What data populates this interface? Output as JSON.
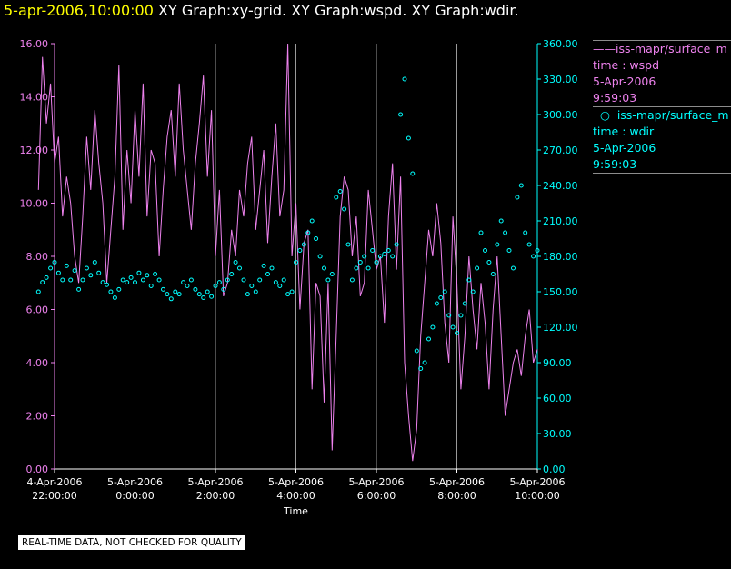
{
  "header": {
    "timestamp": "5-apr-2006,10:00:00",
    "graph_titles": "XY Graph:xy-grid.  XY Graph:wspd.  XY Graph:wdir."
  },
  "legend": {
    "entries": [
      {
        "label": "iss-mapr/surface_m",
        "line1": "time : wspd",
        "line2": "5-Apr-2006",
        "line3": "9:59:03",
        "color": "#ee82ee",
        "marker": "line"
      },
      {
        "label": "iss-mapr/surface_m",
        "line1": "time : wdir",
        "line2": "5-Apr-2006",
        "line3": "9:59:03",
        "color": "#00ffff",
        "marker": "circle"
      }
    ]
  },
  "footer": {
    "quality_note": "REAL-TIME DATA, NOT CHECKED FOR QUALITY"
  },
  "colors": {
    "background": "#000000",
    "wspd": "#ee82ee",
    "wdir": "#00ffff",
    "grid": "#ffffff",
    "timestamp": "#ffff00"
  },
  "chart_data": {
    "type": "line",
    "xlabel": "Time",
    "xlim_hours": [
      -2.4,
      10.1
    ],
    "x_ticks": [
      {
        "h": -2,
        "line1": "4-Apr-2006",
        "line2": "22:00:00"
      },
      {
        "h": 0,
        "line1": "5-Apr-2006",
        "line2": "0:00:00"
      },
      {
        "h": 2,
        "line1": "5-Apr-2006",
        "line2": "2:00:00"
      },
      {
        "h": 4,
        "line1": "5-Apr-2006",
        "line2": "4:00:00"
      },
      {
        "h": 6,
        "line1": "5-Apr-2006",
        "line2": "6:00:00"
      },
      {
        "h": 8,
        "line1": "5-Apr-2006",
        "line2": "8:00:00"
      },
      {
        "h": 10,
        "line1": "5-Apr-2006",
        "line2": "10:00:00"
      }
    ],
    "left_axis": {
      "ylim": [
        0,
        16
      ],
      "ticks": [
        "0.00",
        "2.00",
        "4.00",
        "6.00",
        "8.00",
        "10.00",
        "12.00",
        "14.00",
        "16.00"
      ]
    },
    "right_axis": {
      "ylim": [
        0,
        360
      ],
      "ticks": [
        "0.00",
        "30.00",
        "60.00",
        "90.00",
        "120.00",
        "150.00",
        "180.00",
        "210.00",
        "240.00",
        "270.00",
        "300.00",
        "330.00",
        "360.00"
      ]
    },
    "grid": "vertical",
    "series": [
      {
        "axis": "left",
        "style": "line",
        "x": [
          -2.4,
          -2.3,
          -2.2,
          -2.1,
          -2.0,
          -1.9,
          -1.8,
          -1.7,
          -1.6,
          -1.5,
          -1.4,
          -1.3,
          -1.2,
          -1.1,
          -1.0,
          -0.9,
          -0.8,
          -0.7,
          -0.6,
          -0.5,
          -0.4,
          -0.3,
          -0.2,
          -0.1,
          0.0,
          0.1,
          0.2,
          0.3,
          0.4,
          0.5,
          0.6,
          0.7,
          0.8,
          0.9,
          1.0,
          1.1,
          1.2,
          1.3,
          1.4,
          1.5,
          1.6,
          1.7,
          1.8,
          1.9,
          2.0,
          2.1,
          2.2,
          2.3,
          2.4,
          2.5,
          2.6,
          2.7,
          2.8,
          2.9,
          3.0,
          3.1,
          3.2,
          3.3,
          3.4,
          3.5,
          3.6,
          3.7,
          3.8,
          3.9,
          4.0,
          4.1,
          4.2,
          4.3,
          4.4,
          4.5,
          4.6,
          4.7,
          4.8,
          4.9,
          5.0,
          5.1,
          5.2,
          5.3,
          5.4,
          5.5,
          5.6,
          5.7,
          5.8,
          5.9,
          6.0,
          6.1,
          6.2,
          6.3,
          6.4,
          6.5,
          6.6,
          6.7,
          6.8,
          6.9,
          7.0,
          7.1,
          7.2,
          7.3,
          7.4,
          7.5,
          7.6,
          7.7,
          7.8,
          7.9,
          8.0,
          8.1,
          8.2,
          8.3,
          8.4,
          8.5,
          8.6,
          8.7,
          8.8,
          8.9,
          9.0,
          9.1,
          9.2,
          9.3,
          9.4,
          9.5,
          9.6,
          9.7,
          9.8,
          9.9,
          10.0
        ],
        "values": [
          10.5,
          15.5,
          13.0,
          14.5,
          11.5,
          12.5,
          9.5,
          11.0,
          10.0,
          8.0,
          7.0,
          9.5,
          12.5,
          10.5,
          13.5,
          11.5,
          10.0,
          7.0,
          9.0,
          11.0,
          15.2,
          9.0,
          12.0,
          10.0,
          13.5,
          11.0,
          14.5,
          9.5,
          12.0,
          11.5,
          8.0,
          10.5,
          12.5,
          13.5,
          11.0,
          14.5,
          12.0,
          10.5,
          9.0,
          11.5,
          13.0,
          14.8,
          11.0,
          13.5,
          8.0,
          10.5,
          6.5,
          7.0,
          9.0,
          8.0,
          10.5,
          9.5,
          11.5,
          12.5,
          9.0,
          10.5,
          12.0,
          8.5,
          11.0,
          13.0,
          9.5,
          10.5,
          16.0,
          8.0,
          10.0,
          6.0,
          8.5,
          9.0,
          3.0,
          7.0,
          6.5,
          2.5,
          7.0,
          0.7,
          5.0,
          9.5,
          11.0,
          10.5,
          8.0,
          9.5,
          6.5,
          7.0,
          10.5,
          9.0,
          7.5,
          8.0,
          5.5,
          9.5,
          11.5,
          7.5,
          11.0,
          4.0,
          2.0,
          0.3,
          1.5,
          5.0,
          7.0,
          9.0,
          8.0,
          10.0,
          8.5,
          5.5,
          4.0,
          9.5,
          7.0,
          3.0,
          5.0,
          8.0,
          6.0,
          4.5,
          7.0,
          5.5,
          3.0,
          6.0,
          8.0,
          5.0,
          2.0,
          3.0,
          4.0,
          4.5,
          3.5,
          5.0,
          6.0,
          4.0,
          4.5
        ]
      },
      {
        "axis": "right",
        "style": "circles",
        "x": [
          -2.4,
          -2.3,
          -2.2,
          -2.1,
          -2.0,
          -1.9,
          -1.8,
          -1.7,
          -1.6,
          -1.5,
          -1.4,
          -1.3,
          -1.2,
          -1.1,
          -1.0,
          -0.9,
          -0.8,
          -0.7,
          -0.6,
          -0.5,
          -0.4,
          -0.3,
          -0.2,
          -0.1,
          0.0,
          0.1,
          0.2,
          0.3,
          0.4,
          0.5,
          0.6,
          0.7,
          0.8,
          0.9,
          1.0,
          1.1,
          1.2,
          1.3,
          1.4,
          1.5,
          1.6,
          1.7,
          1.8,
          1.9,
          2.0,
          2.1,
          2.2,
          2.3,
          2.4,
          2.5,
          2.6,
          2.7,
          2.8,
          2.9,
          3.0,
          3.1,
          3.2,
          3.3,
          3.4,
          3.5,
          3.6,
          3.7,
          3.8,
          3.9,
          4.0,
          4.1,
          4.2,
          4.3,
          4.4,
          4.5,
          4.6,
          4.7,
          4.8,
          4.9,
          5.0,
          5.1,
          5.2,
          5.3,
          5.4,
          5.5,
          5.6,
          5.7,
          5.8,
          5.9,
          6.0,
          6.1,
          6.2,
          6.3,
          6.4,
          6.5,
          6.6,
          6.7,
          6.8,
          6.9,
          7.0,
          7.1,
          7.2,
          7.3,
          7.4,
          7.5,
          7.6,
          7.7,
          7.8,
          7.9,
          8.0,
          8.1,
          8.2,
          8.3,
          8.4,
          8.5,
          8.6,
          8.7,
          8.8,
          8.9,
          9.0,
          9.1,
          9.2,
          9.3,
          9.4,
          9.5,
          9.6,
          9.7,
          9.8,
          9.9,
          10.0
        ],
        "values": [
          150,
          158,
          162,
          170,
          175,
          166,
          160,
          172,
          160,
          168,
          152,
          160,
          170,
          164,
          175,
          166,
          158,
          156,
          150,
          145,
          152,
          160,
          158,
          162,
          158,
          166,
          160,
          164,
          155,
          165,
          160,
          152,
          148,
          144,
          150,
          148,
          158,
          155,
          160,
          152,
          148,
          145,
          150,
          146,
          155,
          158,
          152,
          160,
          165,
          175,
          170,
          160,
          148,
          155,
          150,
          160,
          172,
          165,
          170,
          158,
          155,
          160,
          148,
          150,
          175,
          185,
          190,
          200,
          210,
          195,
          180,
          170,
          160,
          165,
          230,
          235,
          220,
          190,
          160,
          170,
          175,
          180,
          170,
          185,
          175,
          180,
          182,
          185,
          180,
          190,
          300,
          330,
          280,
          250,
          100,
          85,
          90,
          110,
          120,
          140,
          145,
          150,
          130,
          120,
          115,
          130,
          140,
          160,
          150,
          170,
          200,
          185,
          175,
          165,
          190,
          210,
          200,
          185,
          170,
          230,
          240,
          200,
          190,
          180,
          185
        ]
      }
    ]
  }
}
